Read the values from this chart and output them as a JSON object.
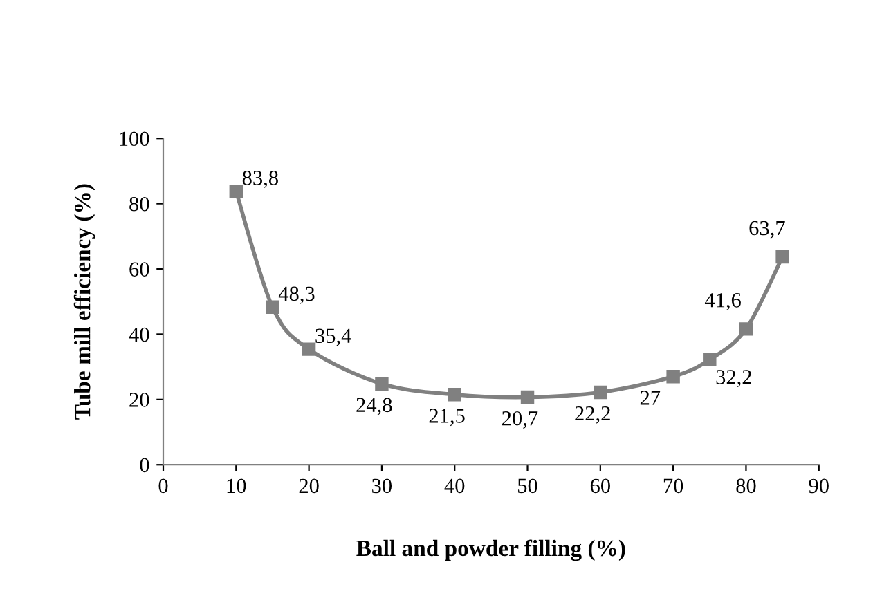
{
  "chart_data": {
    "type": "line",
    "xlabel": "Ball and powder filling (%)",
    "ylabel": "Tube mill efficiency (%)",
    "x": [
      10,
      15,
      20,
      30,
      40,
      50,
      60,
      70,
      75,
      80,
      85
    ],
    "series": [
      {
        "color": "#808080",
        "values": [
          83.8,
          48.3,
          35.4,
          24.8,
          21.5,
          20.7,
          22.2,
          27,
          32.2,
          41.6,
          63.7
        ],
        "value_labels": [
          "83,8",
          "48,3",
          "35,4",
          "24,8",
          "21,5",
          "20,7",
          "22,2",
          "27",
          "32,2",
          "41,6",
          "63,7"
        ]
      }
    ],
    "xlim": [
      0,
      90
    ],
    "xticks": [
      0,
      10,
      20,
      30,
      40,
      50,
      60,
      70,
      80,
      90
    ],
    "ylim": [
      0,
      100
    ],
    "yticks": [
      0,
      20,
      40,
      60,
      80,
      100
    ],
    "grid": false,
    "legend": false,
    "marker": "square",
    "line_style": "solid"
  }
}
